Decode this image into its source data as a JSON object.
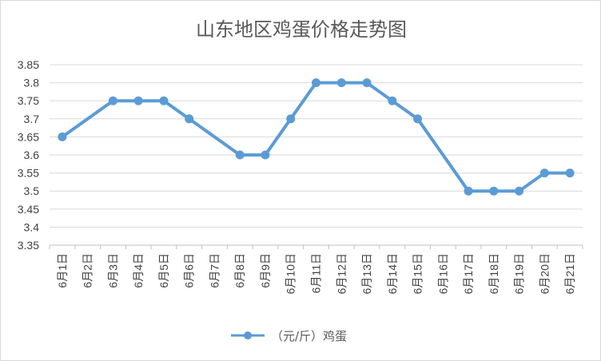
{
  "chart_data": {
    "type": "line",
    "title": "山东地区鸡蛋价格走势图",
    "categories": [
      "6月1日",
      "6月2日",
      "6月3日",
      "6月4日",
      "6月5日",
      "6月6日",
      "6月7日",
      "6月8日",
      "6月9日",
      "6月10日",
      "6月11日",
      "6月12日",
      "6月13日",
      "6月14日",
      "6月15日",
      "6月16日",
      "6月17日",
      "6月18日",
      "6月19日",
      "6月20日",
      "6月21日"
    ],
    "series": [
      {
        "name": "（元/斤）鸡蛋",
        "color": "#5b9bd5",
        "values": [
          3.65,
          null,
          3.75,
          3.75,
          3.75,
          3.7,
          null,
          3.6,
          3.6,
          3.7,
          3.8,
          3.8,
          3.8,
          3.75,
          3.7,
          null,
          3.5,
          3.5,
          3.5,
          3.55,
          3.55
        ]
      }
    ],
    "ylim": [
      3.35,
      3.85
    ],
    "yticks": [
      "3.35",
      "3.4",
      "3.45",
      "3.5",
      "3.55",
      "3.6",
      "3.65",
      "3.7",
      "3.75",
      "3.8",
      "3.85"
    ],
    "grid": true,
    "legend_position": "bottom"
  }
}
